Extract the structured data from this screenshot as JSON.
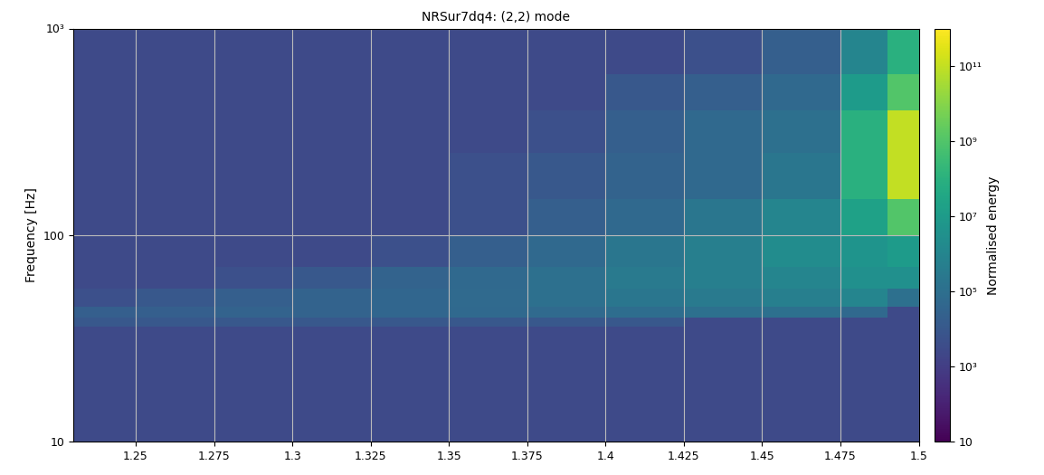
{
  "chart_data": {
    "type": "heatmap",
    "title": "NRSur7dq4: (2,2) mode",
    "y_label": "Frequency [Hz]",
    "log": "y",
    "grid": true,
    "xlim": [
      1.23,
      1.5
    ],
    "xticks": [
      1.25,
      1.275,
      1.3,
      1.325,
      1.35,
      1.375,
      1.4,
      1.425,
      1.45,
      1.475,
      1.5
    ],
    "ylim": [
      10,
      1000
    ],
    "yticks": [
      10,
      100,
      {
        "value": 1000,
        "label": "10³"
      }
    ],
    "x_edges": [
      1.23,
      1.25,
      1.275,
      1.3,
      1.325,
      1.35,
      1.375,
      1.4,
      1.425,
      1.45,
      1.475,
      1.49,
      1.5
    ],
    "y_edges": [
      10,
      20,
      30,
      36,
      40,
      45,
      55,
      70,
      100,
      150,
      250,
      400,
      600,
      1000
    ],
    "cells": [
      [
        3000,
        3000,
        3000,
        3000,
        3000,
        3000,
        3000,
        3000,
        3000,
        3000,
        3000,
        3000
      ],
      [
        3000,
        3000,
        3000,
        3000,
        3000,
        3000,
        3000,
        3000,
        3000,
        3000,
        3000,
        3000
      ],
      [
        3000,
        3000,
        3000,
        3000,
        3000,
        3000,
        3000,
        3000,
        3000,
        3000,
        3000,
        3000
      ],
      [
        10000,
        10000,
        10000,
        10000,
        10000,
        10000,
        10000,
        10000,
        3000,
        3000,
        3000,
        3000
      ],
      [
        20000,
        20000,
        30000,
        30000,
        40000,
        50000,
        60000,
        80000,
        100000,
        100000,
        50000,
        3000
      ],
      [
        5000,
        10000,
        20000,
        30000,
        40000,
        60000,
        100000,
        200000,
        300000,
        500000,
        1000000,
        100000
      ],
      [
        3000,
        3000,
        5000,
        10000,
        30000,
        50000,
        100000,
        300000,
        500000,
        1000000,
        3000000,
        3000000
      ],
      [
        3000,
        3000,
        3000,
        3000,
        5000,
        20000,
        50000,
        200000,
        500000,
        2000000,
        5000000,
        10000000
      ],
      [
        3000,
        3000,
        3000,
        3000,
        3000,
        5000,
        20000,
        50000,
        200000,
        1000000,
        20000000,
        1000000000
      ],
      [
        3000,
        3000,
        3000,
        3000,
        3000,
        5000,
        10000,
        30000,
        50000,
        200000,
        100000000,
        100000000000
      ],
      [
        3000,
        3000,
        3000,
        3000,
        3000,
        3000,
        5000,
        20000,
        50000,
        100000,
        100000000,
        100000000000
      ],
      [
        3000,
        3000,
        3000,
        3000,
        3000,
        3000,
        3000,
        10000,
        20000,
        50000,
        10000000,
        1000000000
      ],
      [
        3000,
        3000,
        3000,
        3000,
        3000,
        3000,
        3000,
        3000,
        5000,
        20000,
        1000000,
        100000000
      ]
    ],
    "colorbar": {
      "label": "Normalised energy",
      "lim": [
        10,
        1000000000000
      ],
      "ticks": [
        10,
        {
          "value": 1000,
          "label": "10³"
        },
        {
          "value": 100000,
          "label": "10⁵"
        },
        {
          "value": 10000000,
          "label": "10⁷"
        },
        {
          "value": 1000000000,
          "label": "10⁹"
        },
        {
          "value": 100000000000,
          "label": "10¹¹"
        }
      ]
    }
  }
}
